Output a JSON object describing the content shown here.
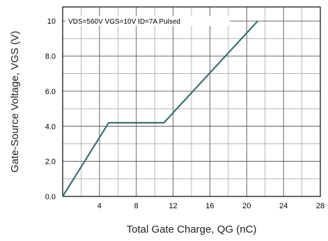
{
  "chart_data": {
    "type": "line",
    "title": "",
    "xlabel": "Total Gate Charge, QG (nC)",
    "ylabel": "Gate-Source Voltage, VGS (V)",
    "xlim": [
      0,
      28
    ],
    "ylim": [
      0,
      10.8
    ],
    "x_ticks": [
      4,
      8,
      12,
      16,
      20,
      24,
      28
    ],
    "y_ticks": [
      0.0,
      2.0,
      4.0,
      6.0,
      8.0,
      10
    ],
    "x_tick_labels": [
      "4",
      "8",
      "12",
      "16",
      "20",
      "24",
      "28"
    ],
    "y_tick_labels": [
      "0.0",
      "2.0",
      "4.0",
      "6.0",
      "8.0",
      "10"
    ],
    "grid": true,
    "annotation": "VDS=560V VGS=10V ID=7A Pulsed",
    "series": [
      {
        "color": "#3c6e6e",
        "x": [
          0.0,
          5.0,
          11.0,
          21.2
        ],
        "y": [
          0.0,
          4.2,
          4.2,
          10.0
        ]
      }
    ]
  }
}
